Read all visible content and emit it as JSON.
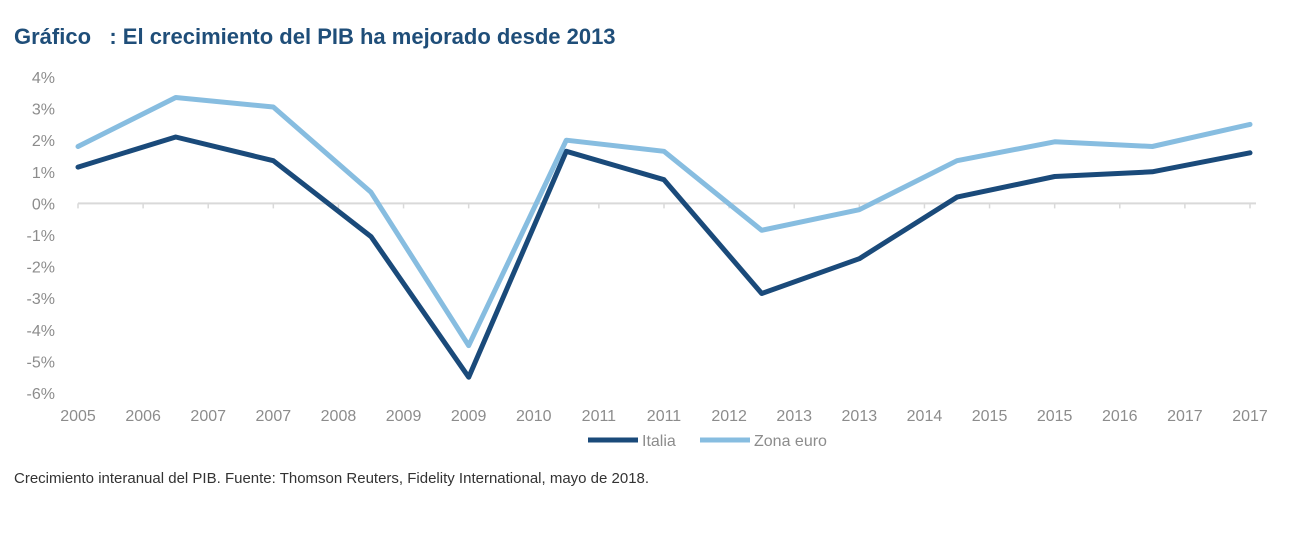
{
  "title": "Gráfico   : El crecimiento del PIB ha mejorado desde 2013",
  "caption": "Crecimiento interanual del PIB. Fuente: Thomson Reuters, Fidelity International, mayo de 2018.",
  "chart_data": {
    "type": "line",
    "title": "Gráfico   : El crecimiento del PIB ha mejorado desde 2013",
    "xlabel": "",
    "ylabel": "",
    "ylim": [
      -6,
      4
    ],
    "yticks": [
      "4%",
      "3%",
      "2%",
      "1%",
      "0%",
      "-1%",
      "-2%",
      "-3%",
      "-4%",
      "-5%",
      "-6%"
    ],
    "ytick_values": [
      4,
      3,
      2,
      1,
      0,
      -1,
      -2,
      -3,
      -4,
      -5,
      -6
    ],
    "x_tick_labels": [
      "2005",
      "2006",
      "2007",
      "2007",
      "2008",
      "2009",
      "2009",
      "2010",
      "2011",
      "2011",
      "2012",
      "2013",
      "2013",
      "2014",
      "2015",
      "2015",
      "2016",
      "2017",
      "2017"
    ],
    "x": [
      "2005",
      "2006.5",
      "2007.5",
      "2008.5",
      "2009.5",
      "2010.5",
      "2011.5",
      "2012.5",
      "2013.5",
      "2014.5",
      "2015.5",
      "2016.5",
      "2017.5"
    ],
    "x_positions": [
      0,
      1.5,
      3,
      4.5,
      6,
      7.5,
      9,
      10.5,
      12,
      13.5,
      15,
      16.5,
      18
    ],
    "series": [
      {
        "name": "Italia",
        "color": "#1a4a7a",
        "values": [
          1.15,
          2.1,
          1.35,
          -1.05,
          -5.5,
          1.65,
          0.75,
          -2.85,
          -1.75,
          0.2,
          0.85,
          1.0,
          1.6
        ]
      },
      {
        "name": "Zona euro",
        "color": "#87bde0",
        "values": [
          1.8,
          3.35,
          3.05,
          0.35,
          -4.5,
          2.0,
          1.65,
          -0.85,
          -0.2,
          1.35,
          1.95,
          1.8,
          2.5
        ]
      }
    ],
    "legend": "bottom-center",
    "grid": false
  }
}
